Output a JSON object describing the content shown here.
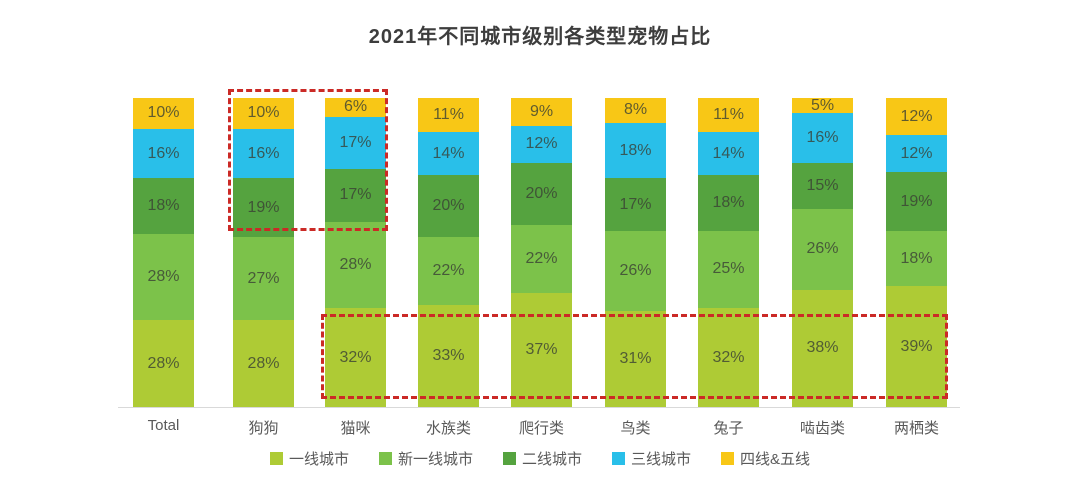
{
  "title": "2021年不同城市级别各类型宠物占比",
  "chart_data": {
    "type": "bar",
    "stacked": true,
    "orientation": "vertical",
    "unit": "%",
    "title": "2021年不同城市级别各类型宠物占比",
    "categories": [
      "Total",
      "狗狗",
      "猫咪",
      "水族类",
      "爬行类",
      "鸟类",
      "兔子",
      "啮齿类",
      "两栖类"
    ],
    "series": [
      {
        "name": "一线城市",
        "color": "#AECB35",
        "values": [
          28,
          28,
          32,
          33,
          37,
          31,
          32,
          38,
          39
        ]
      },
      {
        "name": "新一线城市",
        "color": "#7CC24A",
        "values": [
          28,
          27,
          28,
          22,
          22,
          26,
          25,
          26,
          18
        ]
      },
      {
        "name": "二线城市",
        "color": "#55A33F",
        "values": [
          18,
          19,
          17,
          20,
          20,
          17,
          18,
          15,
          19
        ]
      },
      {
        "name": "三线城市",
        "color": "#29BFE9",
        "values": [
          16,
          16,
          17,
          14,
          12,
          18,
          14,
          16,
          12
        ]
      },
      {
        "name": "四线&五线",
        "color": "#F8C716",
        "values": [
          10,
          10,
          6,
          11,
          9,
          8,
          11,
          5,
          12
        ]
      }
    ],
    "ylim": [
      0,
      100
    ],
    "grid": false,
    "legend_position": "bottom",
    "data_labels": true,
    "annotations": [
      {
        "id": "box-1",
        "type": "dashed-box",
        "color": "#CB2A26",
        "note": "狗狗与猫咪顶部三段(二线/三线/四线&五线)高亮"
      },
      {
        "id": "box-2",
        "type": "dashed-box",
        "color": "#CB2A26",
        "note": "猫咪至两栖类底部一线城市段高亮"
      }
    ]
  }
}
